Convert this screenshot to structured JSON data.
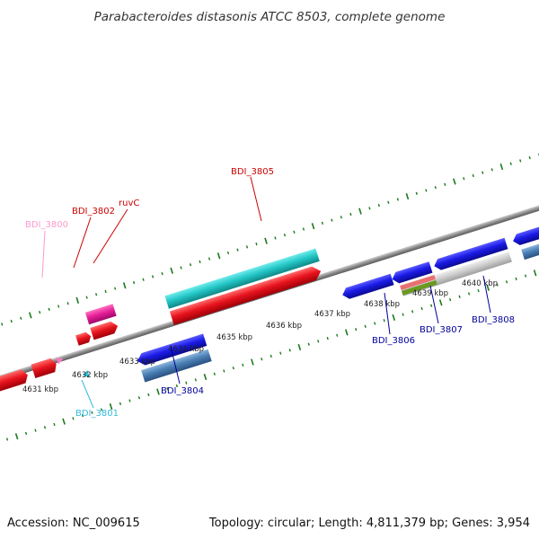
{
  "title": "Parabacteroides distasonis ATCC 8503, complete genome",
  "footer": {
    "accession": "Accession: NC_009615",
    "summary": "Topology: circular; Length: 4,811,379 bp; Genes: 3,954"
  },
  "colors": {
    "forward_red": "#e8141e",
    "reverse_blue": "#1a1ae6",
    "cyan": "#24c8c8",
    "magenta": "#e8209a",
    "steel_blue": "#4a7fb5",
    "pink": "#ff77c4",
    "light_cyan": "#2cc8e0",
    "grey": "#c8c8c8",
    "salmon": "#e87070",
    "olive": "#6a9a20",
    "backbone": "#8c8c8c",
    "tick_green": "#1a7a1a"
  },
  "axis_ticks": [
    {
      "label": "4631 kbp"
    },
    {
      "label": "4632 kbp"
    },
    {
      "label": "4633 kbp"
    },
    {
      "label": "4634 kbp"
    },
    {
      "label": "4635 kbp"
    },
    {
      "label": "4636 kbp"
    },
    {
      "label": "4637 kbp"
    },
    {
      "label": "4638 kbp"
    },
    {
      "label": "4639 kbp"
    },
    {
      "label": "4640 kbp"
    }
  ],
  "gene_labels": [
    {
      "name": "BDI_3800",
      "color": "#ff99cc"
    },
    {
      "name": "BDI_3802",
      "color": "#cc0000"
    },
    {
      "name": "ruvC",
      "color": "#cc0000"
    },
    {
      "name": "BDI_3805",
      "color": "#cc0000"
    },
    {
      "name": "BDI_3801",
      "color": "#33bbdd"
    },
    {
      "name": "BDI_3804",
      "color": "#000099"
    },
    {
      "name": "BDI_3806",
      "color": "#000099"
    },
    {
      "name": "BDI_3807",
      "color": "#000099"
    },
    {
      "name": "BDI_3808",
      "color": "#000099"
    }
  ]
}
